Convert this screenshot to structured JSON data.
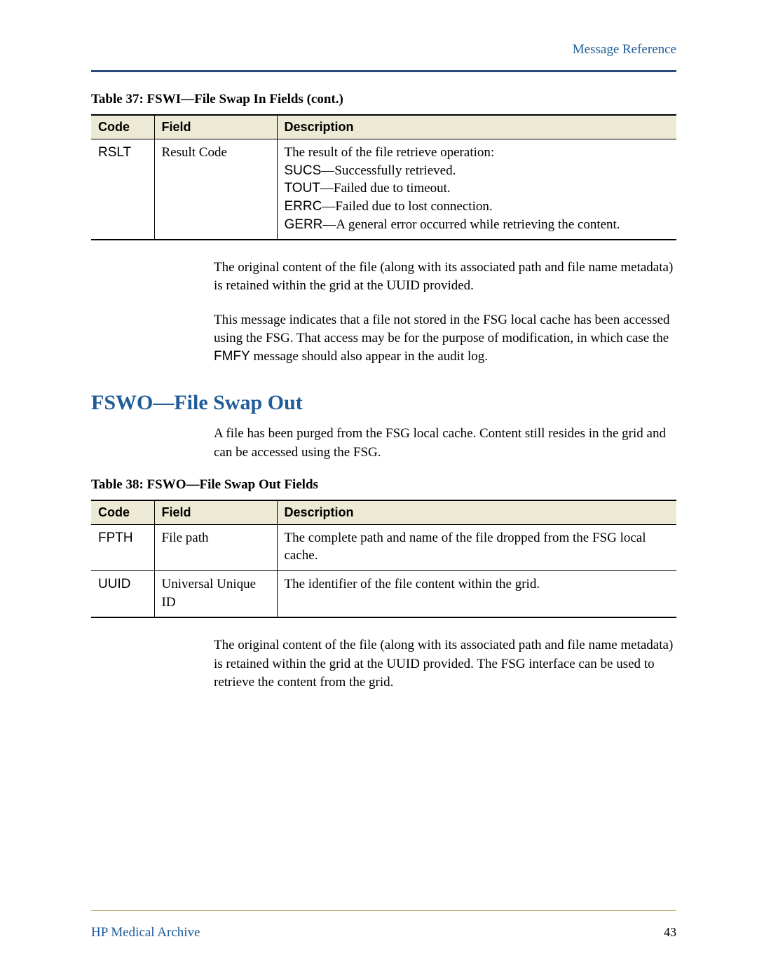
{
  "header": {
    "link": "Message Reference"
  },
  "table37": {
    "caption": "Table 37: FSWI—File Swap In Fields (cont.)",
    "headers": {
      "code": "Code",
      "field": "Field",
      "desc": "Description"
    },
    "row": {
      "code": "RSLT",
      "field": "Result Code",
      "desc_lines": [
        "The result of the file retrieve operation:",
        "SUCS—Successfully retrieved.",
        "TOUT—Failed due to timeout.",
        "ERRC—Failed due to lost connection.",
        "GERR—A general error occurred while retrieving the content."
      ]
    }
  },
  "para1": "The original content of the file (along with its associated path and file name metadata) is retained within the grid at the UUID provided.",
  "para2_pre": "This message indicates that a file not stored in the FSG local cache has been accessed using the FSG. That access may be for the purpose of modification, in which case the ",
  "para2_code": "FMFY",
  "para2_post": " message should also appear in the audit log.",
  "heading": "FSWO—File Swap Out",
  "para3": "A file has been purged from the FSG local cache. Content still resides in the grid and can be accessed using the FSG.",
  "table38": {
    "caption": "Table 38: FSWO—File Swap Out Fields",
    "headers": {
      "code": "Code",
      "field": "Field",
      "desc": "Description"
    },
    "rows": [
      {
        "code": "FPTH",
        "field": "File path",
        "desc": "The complete path and name of the file dropped from the FSG local cache."
      },
      {
        "code": "UUID",
        "field": "Universal Unique ID",
        "desc": "The identifier of the file content within the grid."
      }
    ]
  },
  "para4": "The original content of the file (along with its associated path and file name metadata) is retained within the grid at the UUID provided. The FSG interface can be used to retrieve the content from the grid.",
  "footer": {
    "left": "HP Medical Archive",
    "page": "43"
  },
  "colors": {
    "link": "#1f5c99",
    "header_bg": "#ece9d4",
    "rule_top": "#2b4a7a",
    "rule_bottom": "#b0a060"
  }
}
